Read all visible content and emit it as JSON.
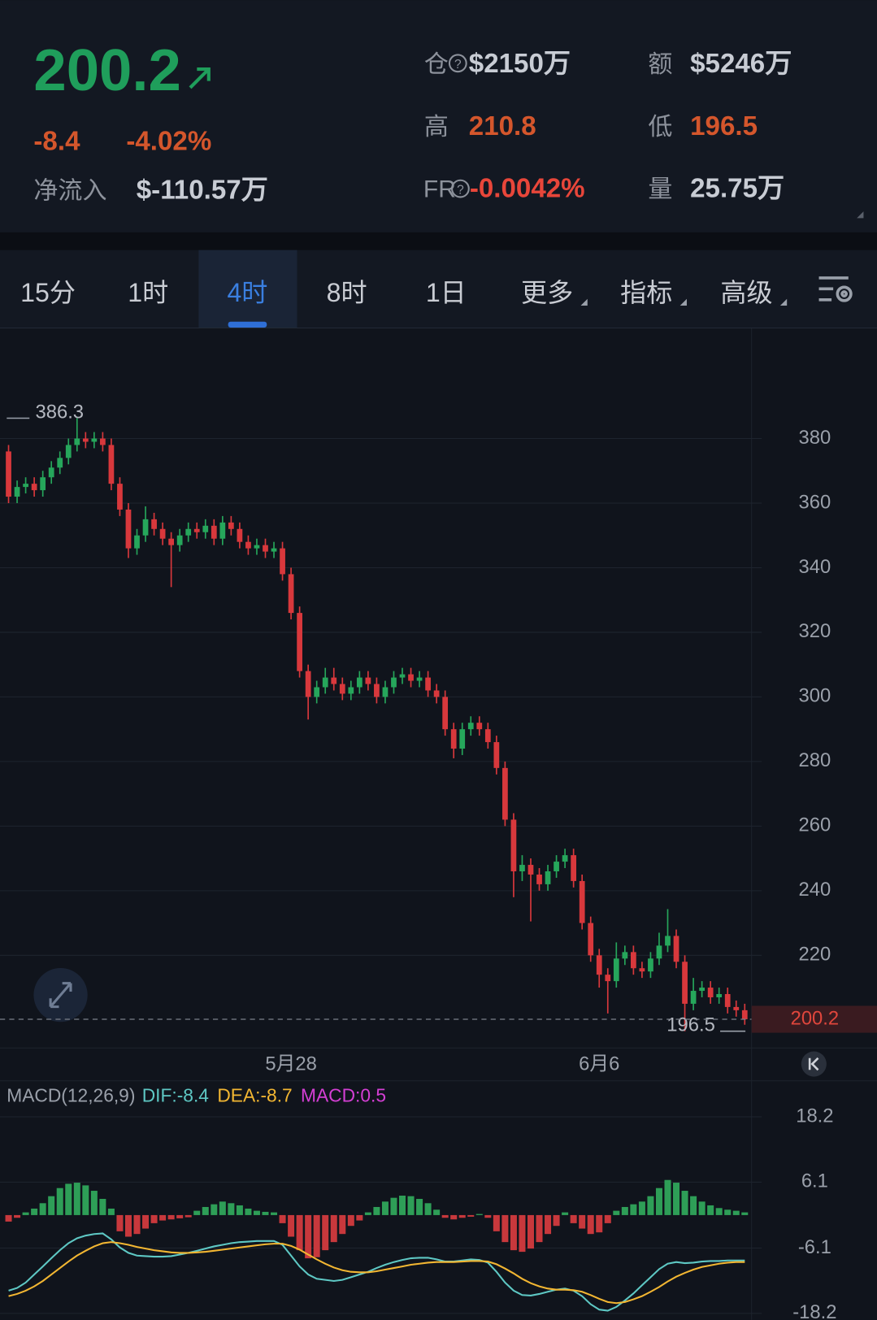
{
  "header": {
    "price": "200.2",
    "change": "-8.4",
    "change_pct": "-4.02%",
    "net_inflow_label": "净流入",
    "net_inflow": "$-110.57万",
    "stats": [
      {
        "label": "仓",
        "value": "$2150万"
      },
      {
        "label": "额",
        "value": "$5246万"
      },
      {
        "label": "高",
        "value": "210.8"
      },
      {
        "label": "低",
        "value": "196.5"
      },
      {
        "label": "FR",
        "value": "-0.0042%"
      },
      {
        "label": "量",
        "value": "25.75万"
      }
    ]
  },
  "tabs": {
    "items": [
      "15分",
      "1时",
      "4时",
      "8时",
      "1日",
      "更多",
      "指标",
      "高级"
    ],
    "active": 2
  },
  "chart_data": [
    {
      "type": "candlestick",
      "up_color": "#26a65b",
      "down_color": "#d8383c",
      "grid": true,
      "open": [
        376,
        362,
        365,
        366,
        364,
        368,
        371,
        374,
        378,
        380,
        379,
        380,
        378,
        366,
        358,
        346,
        350,
        355,
        352,
        349,
        347,
        350,
        352,
        351,
        353,
        349,
        354,
        352,
        348,
        346,
        347,
        345,
        346,
        338,
        326,
        308,
        300,
        303,
        306,
        304,
        301,
        303,
        306,
        304,
        300,
        303,
        306,
        307,
        305,
        306,
        302,
        300,
        290,
        284,
        290,
        292,
        290,
        286,
        278,
        262,
        246,
        248,
        245,
        242,
        246,
        249,
        251,
        243,
        230,
        220,
        214,
        212,
        219,
        221,
        216,
        215,
        219,
        223,
        226,
        218,
        205,
        209,
        210,
        207,
        208,
        204,
        203
      ],
      "high": [
        378,
        367,
        368,
        368,
        370,
        373,
        376,
        380,
        386.3,
        382,
        382,
        382,
        380,
        368,
        360,
        352,
        359,
        357,
        354,
        351,
        352,
        354,
        354,
        355,
        355,
        356,
        356,
        354,
        350,
        349,
        349,
        348,
        348,
        340,
        328,
        310,
        305,
        309,
        309,
        306,
        305,
        308,
        308,
        306,
        305,
        308,
        309,
        309,
        308,
        308,
        304,
        302,
        292,
        292,
        294,
        294,
        292,
        288,
        280,
        264,
        251,
        250,
        247,
        248,
        251,
        253,
        253,
        245,
        232,
        222,
        216,
        224,
        223,
        223,
        218,
        221,
        227,
        234.3,
        228,
        220,
        213,
        212,
        212,
        210,
        210,
        206,
        205
      ],
      "low": [
        360,
        360,
        363,
        362,
        362,
        366,
        369,
        372,
        376,
        377,
        377,
        376,
        364,
        356,
        343,
        344,
        348,
        350,
        347,
        334,
        345,
        348,
        349,
        349,
        347,
        347,
        350,
        346,
        344,
        344,
        343,
        343,
        336,
        324,
        306,
        293,
        298,
        301,
        302,
        299,
        299,
        301,
        302,
        298,
        298,
        301,
        304,
        303,
        303,
        300,
        298,
        288,
        281,
        282,
        288,
        288,
        284,
        276,
        260,
        238,
        243,
        230.5,
        240,
        240,
        244,
        247,
        241,
        228,
        218,
        210,
        202,
        210,
        217,
        214,
        213,
        213,
        217,
        221,
        216,
        196.5,
        203,
        207,
        205,
        205,
        202,
        201,
        198.5
      ],
      "close": [
        362,
        365,
        366,
        364,
        368,
        371,
        374,
        378,
        380,
        379,
        380,
        378,
        366,
        358,
        346,
        350,
        355,
        352,
        349,
        347,
        350,
        352,
        351,
        353,
        349,
        354,
        352,
        348,
        346,
        347,
        345,
        346,
        338,
        326,
        308,
        300,
        303,
        306,
        304,
        301,
        303,
        306,
        304,
        300,
        303,
        306,
        307,
        305,
        306,
        302,
        300,
        290,
        284,
        290,
        292,
        290,
        286,
        278,
        262,
        246,
        248,
        245,
        242,
        246,
        249,
        251,
        243,
        230,
        220,
        214,
        212,
        219,
        221,
        216,
        215,
        219,
        223,
        226,
        218,
        205,
        209,
        210,
        207,
        208,
        204,
        203,
        200.2
      ],
      "xlim": [
        -1,
        86.8
      ],
      "xticks": [
        {
          "value": 33,
          "label": "5月28"
        },
        {
          "value": 69,
          "label": "6月6"
        }
      ],
      "ylim": [
        191.3,
        414.1
      ],
      "yticks": [
        220,
        240,
        260,
        280,
        300,
        320,
        340,
        360,
        380
      ],
      "max_label": 386.3,
      "min_label": 196.5,
      "last_price": 200.2
    },
    {
      "type": "macd",
      "title": "MACD(12,26,9)",
      "xlim": [
        -1,
        86.8
      ],
      "ylim": [
        -19.4,
        24.7
      ],
      "yticks": [
        18.2,
        6.1,
        -6.1,
        -18.2
      ],
      "grid": true,
      "series": [
        {
          "name": "DIF:-8.4",
          "kind": "line",
          "color": "#5ec8c4",
          "values": [
            -14,
            -13.5,
            -12.5,
            -11,
            -9.5,
            -8,
            -6.5,
            -5.2,
            -4.3,
            -3.8,
            -3.5,
            -3.4,
            -4.5,
            -6,
            -7,
            -7.5,
            -7.6,
            -7.7,
            -7.7,
            -7.6,
            -7.3,
            -7,
            -6.6,
            -6.2,
            -5.8,
            -5.5,
            -5.2,
            -5,
            -4.9,
            -4.8,
            -4.8,
            -4.8,
            -5.5,
            -7.5,
            -9.5,
            -11,
            -11.8,
            -12,
            -12.2,
            -12,
            -11.5,
            -11,
            -10.5,
            -9.8,
            -9.2,
            -8.7,
            -8.3,
            -8,
            -7.9,
            -7.9,
            -8.2,
            -8.6,
            -8.6,
            -8.4,
            -8.2,
            -8.3,
            -8.8,
            -10.5,
            -12.5,
            -14,
            -14.8,
            -14.9,
            -14.6,
            -14.2,
            -13.8,
            -13.6,
            -14,
            -15,
            -16.5,
            -17.5,
            -17.7,
            -17,
            -15.8,
            -14.5,
            -13,
            -11.5,
            -10,
            -9,
            -8.7,
            -8.9,
            -8.8,
            -8.6,
            -8.5,
            -8.5,
            -8.4,
            -8.4,
            -8.4
          ]
        },
        {
          "name": "DEA:-8.7",
          "kind": "line",
          "color": "#f2b632",
          "values": [
            -15,
            -14.6,
            -14,
            -13.2,
            -12.2,
            -11,
            -9.8,
            -8.6,
            -7.5,
            -6.6,
            -5.8,
            -5.2,
            -5,
            -5.2,
            -5.5,
            -5.9,
            -6.2,
            -6.5,
            -6.7,
            -6.9,
            -7,
            -7,
            -6.9,
            -6.8,
            -6.6,
            -6.4,
            -6.2,
            -6,
            -5.8,
            -5.6,
            -5.4,
            -5.3,
            -5.3,
            -5.7,
            -6.4,
            -7.3,
            -8.2,
            -9,
            -9.7,
            -10.2,
            -10.5,
            -10.6,
            -10.6,
            -10.4,
            -10.1,
            -9.8,
            -9.5,
            -9.2,
            -9,
            -8.8,
            -8.7,
            -8.7,
            -8.7,
            -8.6,
            -8.5,
            -8.5,
            -8.6,
            -9.1,
            -9.9,
            -10.8,
            -11.8,
            -12.6,
            -13.2,
            -13.6,
            -13.8,
            -13.8,
            -13.9,
            -14.2,
            -14.8,
            -15.5,
            -16.1,
            -16.3,
            -16.1,
            -15.6,
            -15,
            -14.2,
            -13.3,
            -12.3,
            -11.4,
            -10.7,
            -10.1,
            -9.6,
            -9.3,
            -9,
            -8.8,
            -8.7,
            -8.7
          ]
        },
        {
          "name": "MACD:0.5",
          "kind": "histogram",
          "color": "#d43fd4",
          "up_color": "#2e9e57",
          "down_color": "#c8383c",
          "values": [
            -1.2,
            -0.5,
            0.5,
            1.2,
            2.2,
            3.5,
            5,
            5.8,
            6,
            5.5,
            4.5,
            3,
            1.2,
            -3,
            -4,
            -3.5,
            -2.5,
            -1.5,
            -1,
            -0.8,
            -0.6,
            -0.4,
            0.8,
            1.5,
            2,
            2.5,
            2.2,
            1.8,
            1.2,
            0.8,
            0.6,
            0.5,
            -1.5,
            -4,
            -6.5,
            -8,
            -7.8,
            -6.5,
            -5,
            -3.5,
            -2,
            -1,
            0.5,
            1.5,
            2.5,
            3.2,
            3.6,
            3.5,
            3,
            2.2,
            1,
            -0.5,
            -0.8,
            -0.5,
            -0.3,
            0.2,
            -0.5,
            -3,
            -5,
            -6.5,
            -6.8,
            -6.2,
            -5,
            -3.5,
            -2,
            0.5,
            -1.5,
            -2.5,
            -3.5,
            -3.2,
            -1.5,
            0.8,
            1.5,
            2,
            2.5,
            3.5,
            5,
            6.5,
            6,
            4.5,
            3.5,
            2.5,
            1.8,
            1.3,
            1,
            0.8,
            0.5
          ]
        }
      ]
    }
  ]
}
